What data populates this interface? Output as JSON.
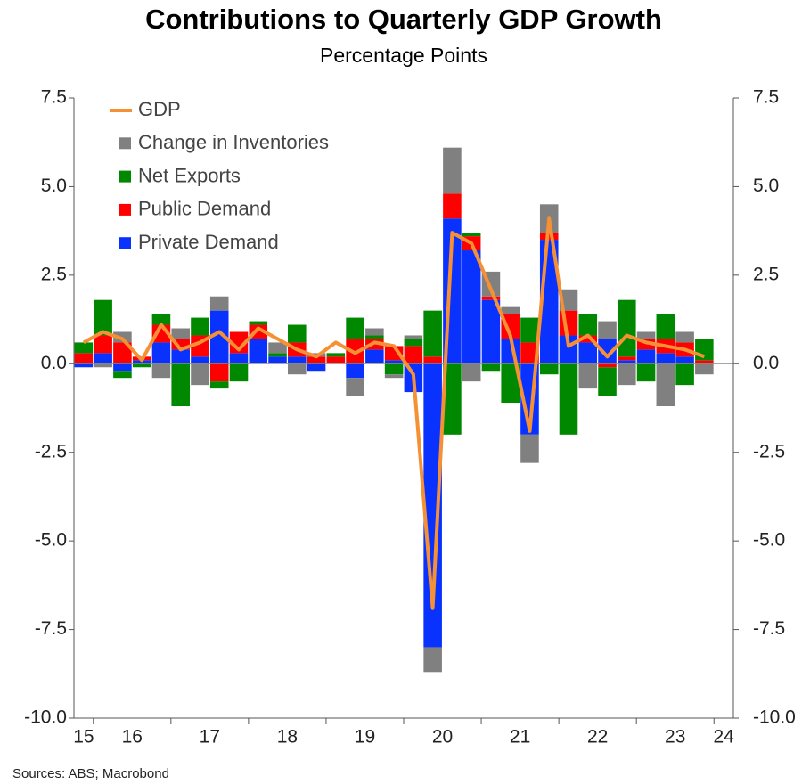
{
  "chart_data": {
    "type": "bar",
    "stacked": true,
    "title": "Contributions to Quarterly GDP Growth",
    "subtitle": "Percentage Points",
    "source": "Sources: ABS; Macrobond",
    "categories": [
      null,
      null,
      null,
      null,
      null,
      null,
      null,
      null,
      null,
      null,
      null,
      null,
      null,
      null,
      null,
      null,
      null,
      null,
      null,
      null,
      null,
      null,
      null,
      null,
      null,
      null,
      null,
      null,
      null,
      null,
      null,
      null,
      null
    ],
    "xtick_labels": [
      "15",
      "16",
      "17",
      "18",
      "19",
      "20",
      "21",
      "22",
      "23",
      "24"
    ],
    "series": [
      {
        "name": "Private Demand",
        "color": "#0a32ff",
        "values": [
          -0.1,
          0.3,
          -0.2,
          0.1,
          0.6,
          0.4,
          0.2,
          1.5,
          0.3,
          0.7,
          0.2,
          0.2,
          -0.2,
          0.0,
          -0.4,
          0.4,
          0.1,
          -0.8,
          -8.0,
          4.1,
          3.2,
          1.8,
          0.7,
          -2.0,
          3.5,
          0.8,
          0.6,
          0.7,
          0.1,
          0.4,
          0.3,
          0.2,
          0.0
        ]
      },
      {
        "name": "Public Demand",
        "color": "#ff0000",
        "values": [
          0.3,
          0.5,
          0.6,
          0.1,
          0.5,
          0.3,
          0.6,
          -0.5,
          0.6,
          0.4,
          0.0,
          0.4,
          0.2,
          0.2,
          0.7,
          0.3,
          0.4,
          0.5,
          0.2,
          0.7,
          0.4,
          0.1,
          0.7,
          0.6,
          0.2,
          0.7,
          0.2,
          -0.1,
          0.1,
          0.3,
          0.4,
          0.4,
          0.1
        ]
      },
      {
        "name": "Net Exports",
        "color": "#008800",
        "values": [
          0.3,
          1.0,
          -0.2,
          -0.1,
          0.3,
          -1.2,
          0.5,
          -0.2,
          -0.5,
          0.1,
          0.1,
          0.5,
          0.0,
          0.1,
          0.6,
          0.1,
          -0.3,
          0.2,
          1.3,
          -2.0,
          0.1,
          -0.2,
          -1.1,
          0.7,
          -0.3,
          -2.0,
          0.6,
          -0.8,
          1.6,
          -0.5,
          0.7,
          -0.6,
          0.6
        ]
      },
      {
        "name": "Change in Inventories",
        "color": "#808080",
        "values": [
          0.0,
          -0.1,
          0.3,
          0.0,
          -0.4,
          0.3,
          -0.6,
          0.4,
          0.0,
          0.0,
          0.3,
          -0.3,
          0.1,
          0.0,
          -0.5,
          0.2,
          -0.1,
          0.1,
          -0.7,
          1.3,
          -0.5,
          0.7,
          0.2,
          -0.8,
          0.8,
          0.6,
          -0.7,
          0.5,
          -0.6,
          0.2,
          -1.2,
          0.3,
          -0.3
        ]
      },
      {
        "name": "GDP",
        "type": "line",
        "color": "#f59134",
        "values": [
          0.6,
          0.9,
          0.7,
          0.1,
          1.1,
          0.4,
          0.6,
          0.9,
          0.4,
          1.0,
          0.7,
          0.4,
          0.2,
          0.6,
          0.3,
          0.6,
          0.5,
          -0.3,
          -6.9,
          3.7,
          3.4,
          2.1,
          0.8,
          -1.9,
          4.1,
          0.5,
          0.8,
          0.2,
          0.8,
          0.6,
          0.5,
          0.4,
          0.2
        ]
      }
    ],
    "ylim": [
      -10,
      7.5
    ],
    "yticks": [
      {
        "value": -10,
        "label": "-10.0"
      },
      {
        "value": -7.5,
        "label": "-7.5"
      },
      {
        "value": -5,
        "label": "-5.0"
      },
      {
        "value": -2.5,
        "label": "-2.5"
      },
      {
        "value": 0,
        "label": "0.0"
      },
      {
        "value": 2.5,
        "label": "2.5"
      },
      {
        "value": 5,
        "label": "5.0"
      },
      {
        "value": 7.5,
        "label": "7.5"
      }
    ],
    "y2lim": [
      -10,
      7.5
    ],
    "y2ticks": [
      {
        "value": -10,
        "label": "-10.0"
      },
      {
        "value": -7.5,
        "label": "-7.5"
      },
      {
        "value": -5,
        "label": "-5.0"
      },
      {
        "value": -2.5,
        "label": "-2.5"
      },
      {
        "value": 0,
        "label": "0.0"
      },
      {
        "value": 2.5,
        "label": "2.5"
      },
      {
        "value": 5,
        "label": "5.0"
      },
      {
        "value": 7.5,
        "label": "7.5"
      }
    ],
    "grid": false,
    "legend": "upper left"
  }
}
